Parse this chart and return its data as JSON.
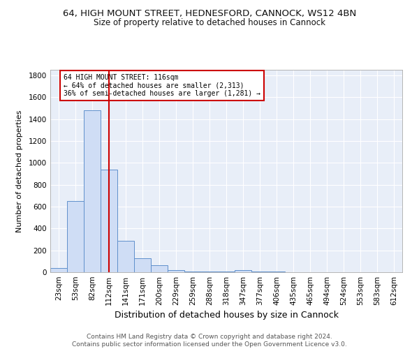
{
  "title1": "64, HIGH MOUNT STREET, HEDNESFORD, CANNOCK, WS12 4BN",
  "title2": "Size of property relative to detached houses in Cannock",
  "xlabel": "Distribution of detached houses by size in Cannock",
  "ylabel": "Number of detached properties",
  "bins": [
    "23sqm",
    "53sqm",
    "82sqm",
    "112sqm",
    "141sqm",
    "171sqm",
    "200sqm",
    "229sqm",
    "259sqm",
    "288sqm",
    "318sqm",
    "347sqm",
    "377sqm",
    "406sqm",
    "435sqm",
    "465sqm",
    "494sqm",
    "524sqm",
    "553sqm",
    "583sqm",
    "612sqm"
  ],
  "bar_values": [
    38,
    650,
    1480,
    940,
    285,
    130,
    62,
    22,
    8,
    5,
    5,
    18,
    5,
    5,
    0,
    0,
    0,
    0,
    0,
    0,
    0
  ],
  "bar_color": "#cfddf5",
  "bar_edge_color": "#6090cc",
  "bar_width": 1.0,
  "vline_x": 3.0,
  "vline_color": "#cc0000",
  "annotation_text": "64 HIGH MOUNT STREET: 116sqm\n← 64% of detached houses are smaller (2,313)\n36% of semi-detached houses are larger (1,281) →",
  "annotation_box_color": "#ffffff",
  "annotation_box_edge": "#cc0000",
  "ylim": [
    0,
    1850
  ],
  "yticks": [
    0,
    200,
    400,
    600,
    800,
    1000,
    1200,
    1400,
    1600,
    1800
  ],
  "background_color": "#e8eef8",
  "grid_color": "#ffffff",
  "footer": "Contains HM Land Registry data © Crown copyright and database right 2024.\nContains public sector information licensed under the Open Government Licence v3.0.",
  "title1_fontsize": 9.5,
  "title2_fontsize": 8.5,
  "xlabel_fontsize": 9,
  "ylabel_fontsize": 8,
  "tick_fontsize": 7.5,
  "footer_fontsize": 6.5
}
